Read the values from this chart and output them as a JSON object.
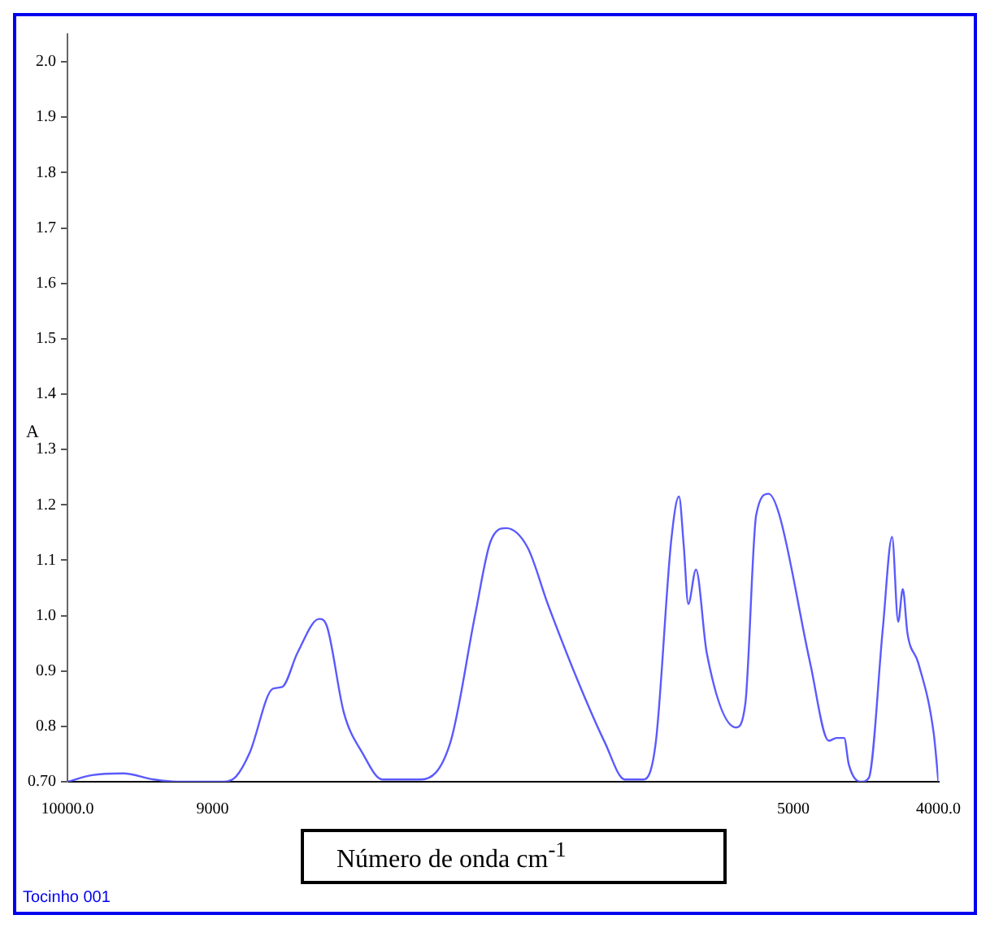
{
  "chart_data": {
    "type": "line",
    "xlabel": "Número de onda cm$^{-1}$",
    "ylabel": "A",
    "annotations": [
      "Tocinho 001"
    ],
    "x": [
      10000,
      9830,
      9617,
      9404,
      9245,
      8926,
      8840,
      8745,
      8585,
      8521,
      8415,
      8266,
      8213,
      8096,
      7968,
      7830,
      7564,
      7362,
      7191,
      7085,
      6979,
      6830,
      6691,
      6479,
      6298,
      6160,
      6032,
      5947,
      5840,
      5787,
      5755,
      5723,
      5670,
      5596,
      5394,
      5330,
      5255,
      5170,
      5096,
      4883,
      4755,
      4702,
      4649,
      4617,
      4532,
      4479,
      4383,
      4319,
      4277,
      4245,
      4213,
      4138,
      4032,
      4000
    ],
    "series": [
      {
        "color": "#5a5aff",
        "values": [
          0.7,
          0.712,
          0.715,
          0.704,
          0.7,
          0.7,
          0.709,
          0.752,
          0.868,
          0.871,
          0.933,
          0.994,
          0.981,
          0.825,
          0.752,
          0.704,
          0.704,
          0.771,
          1.002,
          1.134,
          1.158,
          1.123,
          1.021,
          0.879,
          0.771,
          0.704,
          0.704,
          0.771,
          1.137,
          1.215,
          1.129,
          1.021,
          1.083,
          0.933,
          0.798,
          0.841,
          1.182,
          1.22,
          1.182,
          0.914,
          0.774,
          0.779,
          0.779,
          0.731,
          0.7,
          0.707,
          0.976,
          1.142,
          0.989,
          1.048,
          0.968,
          0.914,
          0.787,
          0.7
        ]
      }
    ],
    "xlim": [
      10000,
      4000
    ],
    "xticks": [
      {
        "value": 10000,
        "label": "10000.0"
      },
      9000,
      5000,
      {
        "value": 4000,
        "label": "4000.0"
      }
    ],
    "ylim": [
      0.7,
      2.05
    ],
    "yticks": [
      {
        "value": 0.7,
        "label": "0.70"
      },
      0.8,
      0.9,
      {
        "value": 1,
        "label": "1.0"
      },
      1.1,
      1.2,
      1.3,
      1.4,
      1.5,
      1.6,
      1.7,
      1.8,
      1.9,
      {
        "value": 2,
        "label": "2.0"
      }
    ],
    "grid": false,
    "legend": false,
    "marker": "none",
    "line_style": "solid"
  }
}
